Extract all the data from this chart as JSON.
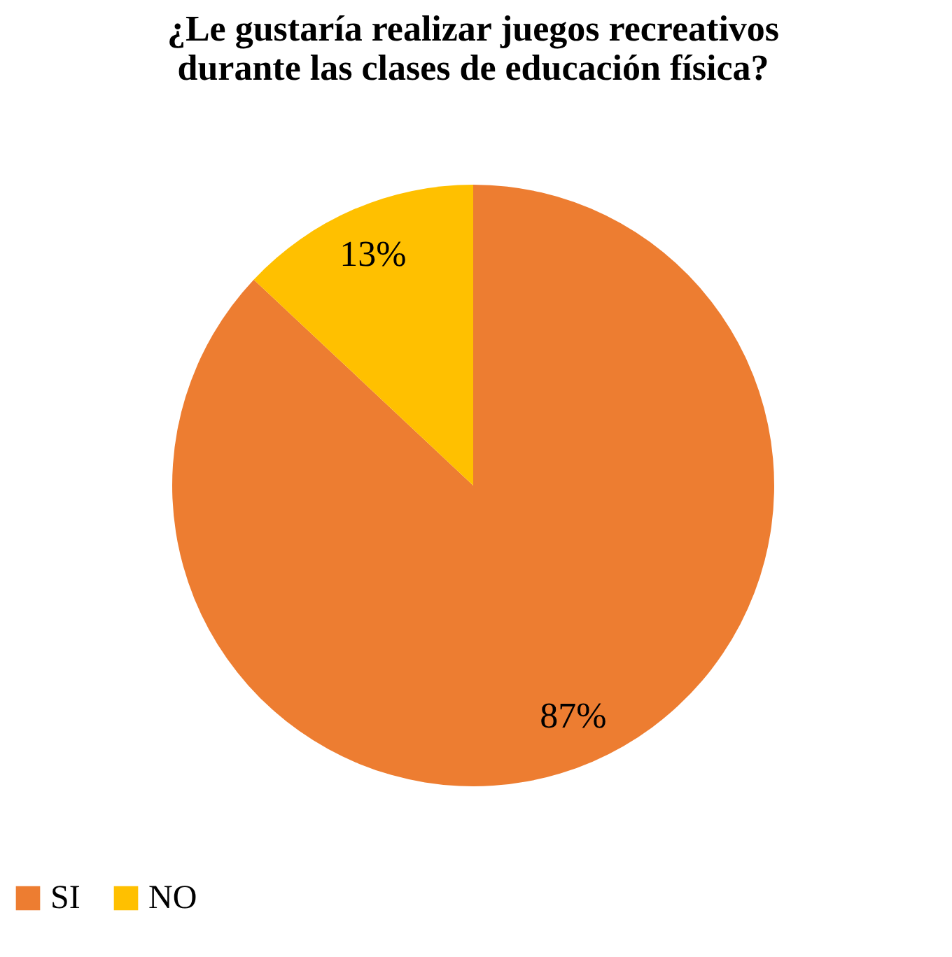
{
  "chart_data": {
    "type": "pie",
    "title": [
      "¿Le gustaría realizar juegos recreativos",
      "durante las clases de educación física?"
    ],
    "categories": [
      "SI",
      "NO"
    ],
    "values": [
      87,
      13
    ],
    "colors": [
      "#ed7d31",
      "#ffc000"
    ],
    "value_labels": [
      "87%",
      "13%"
    ],
    "legend": "bottom"
  }
}
